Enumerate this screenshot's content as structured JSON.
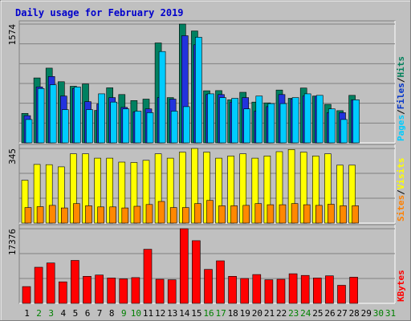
{
  "chart_data": {
    "type": "bar",
    "title": "Daily usage for February 2019",
    "days": [
      "1",
      "2",
      "3",
      "4",
      "5",
      "6",
      "7",
      "8",
      "9",
      "10",
      "11",
      "12",
      "13",
      "14",
      "15",
      "16",
      "17",
      "18",
      "19",
      "20",
      "21",
      "22",
      "23",
      "24",
      "25",
      "26",
      "27",
      "28",
      "29",
      "30",
      "31"
    ],
    "weekend_days": [
      2,
      3,
      9,
      10,
      16,
      17,
      23,
      24,
      30,
      31
    ],
    "panels": [
      {
        "id": "hits-files-pages",
        "ymax_label": "1574",
        "ymax": 1574,
        "legend": [
          "Pages",
          "/",
          "Files",
          "/",
          "Hits"
        ],
        "legend_colors": [
          "#00ccff",
          "#000000",
          "#0033cc",
          "#000000",
          "#00805a"
        ],
        "series": [
          {
            "name": "Hits",
            "color": "#008060",
            "values": [
              390,
              860,
              990,
              810,
              750,
              780,
              430,
              730,
              640,
              560,
              580,
              1324,
              600,
              1574,
              1483,
              690,
              692,
              570,
              670,
              540,
              530,
              700,
              590,
              726,
              620,
              510,
              426,
              630
            ]
          },
          {
            "name": "Files",
            "color": "#2233dd",
            "values": [
              360,
              740,
              880,
              620,
              720,
              546,
              516,
              600,
              470,
              410,
              450,
              600,
              580,
              1420,
              1300,
              640,
              640,
              540,
              600,
              420,
              480,
              640,
              580,
              620,
              620,
              400,
              400,
              570
            ]
          },
          {
            "name": "Pages",
            "color": "#00ccff",
            "values": [
              310,
              720,
              770,
              440,
              740,
              440,
              650,
              540,
              450,
              420,
              400,
              1210,
              420,
              480,
              1400,
              650,
              600,
              590,
              450,
              620,
              520,
              520,
              600,
              650,
              630,
              450,
              310,
              570
            ]
          }
        ]
      },
      {
        "id": "visits-sites",
        "ymax_label": "345",
        "ymax": 345,
        "legend": [
          "Sites",
          "/",
          "Visits"
        ],
        "legend_colors": [
          "#ff8000",
          "#000000",
          "#ffff00"
        ],
        "series": [
          {
            "name": "Visits",
            "color": "#ffff00",
            "values": [
              198,
              271,
              270,
              260,
              320,
              320,
              300,
              300,
              282,
              280,
              290,
              320,
              300,
              328,
              345,
              328,
              300,
              310,
              320,
              300,
              310,
              330,
              340,
              328,
              310,
              320,
              268,
              268
            ]
          },
          {
            "name": "Sites",
            "color": "#ff8800",
            "values": [
              72,
              76,
              82,
              70,
              90,
              80,
              75,
              75,
              70,
              78,
              86,
              100,
              72,
              72,
              90,
              105,
              80,
              80,
              82,
              90,
              85,
              85,
              90,
              85,
              82,
              87,
              80,
              80
            ]
          }
        ]
      },
      {
        "id": "kbytes",
        "ymax_label": "17376",
        "ymax": 17376,
        "legend": [
          "KBytes"
        ],
        "legend_colors": [
          "#ff0000"
        ],
        "series": [
          {
            "name": "KBytes",
            "color": "#ff0000",
            "values": [
              3900,
              8400,
              9400,
              5000,
              10000,
              6300,
              6600,
              5900,
              5700,
              6000,
              12600,
              5600,
              5500,
              17376,
              14600,
              7900,
              9900,
              6300,
              5800,
              6700,
              5500,
              5600,
              6900,
              6500,
              5900,
              6400,
              4200,
              6100
            ]
          }
        ]
      }
    ],
    "colors": {
      "frame_bg": "#c0c0c0",
      "plot_bg": "#c0c0c0",
      "title_color": "#0000cc",
      "grid": "#808080",
      "weekday_label": "#000000",
      "weekend_label": "#008000"
    },
    "grid": true
  }
}
